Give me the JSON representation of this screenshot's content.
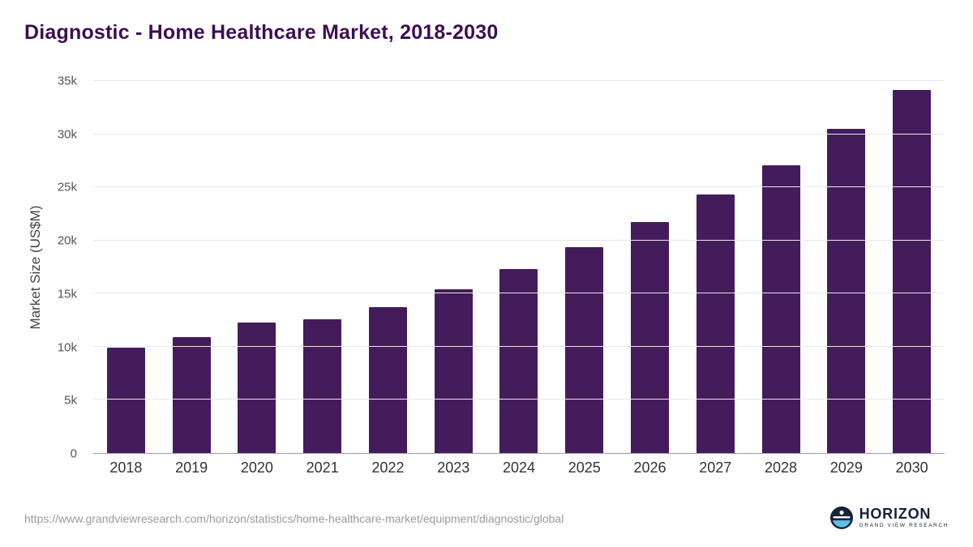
{
  "page": {
    "title": "Diagnostic - Home Healthcare Market, 2018-2030",
    "source_url": "https://www.grandviewresearch.com/horizon/statistics/home-healthcare-market/equipment/diagnostic/global",
    "brand": {
      "name": "HORIZON",
      "subtitle": "GRAND VIEW RESEARCH",
      "logo_icon": "horizon-circle-logo"
    }
  },
  "colors": {
    "bar": "#441b5b",
    "title": "#3d0e52",
    "gridline": "#e8e8e8",
    "axis_line": "#9b9b9b",
    "tick_text": "#555555",
    "x_label_text": "#333333",
    "source_text": "#9a9a9a",
    "logo_navy": "#152238",
    "logo_blue": "#5cc0e8"
  },
  "chart_data": {
    "type": "bar",
    "title": "Diagnostic - Home Healthcare Market, 2018-2030",
    "categories": [
      "2018",
      "2019",
      "2020",
      "2021",
      "2022",
      "2023",
      "2024",
      "2025",
      "2026",
      "2027",
      "2028",
      "2029",
      "2030"
    ],
    "values": [
      9900,
      10900,
      12300,
      12600,
      13700,
      15400,
      17300,
      19400,
      21700,
      24300,
      27100,
      30500,
      34200
    ],
    "xlabel": "",
    "ylabel": "Market Size (US$M)",
    "ylim": [
      0,
      35000
    ],
    "yticks": [
      0,
      5000,
      10000,
      15000,
      20000,
      25000,
      30000,
      35000
    ],
    "ytick_labels": [
      "0",
      "5k",
      "10k",
      "15k",
      "20k",
      "25k",
      "30k",
      "35k"
    ],
    "grid": "horizontal",
    "legend": "none",
    "bar_color": "#441b5b"
  }
}
